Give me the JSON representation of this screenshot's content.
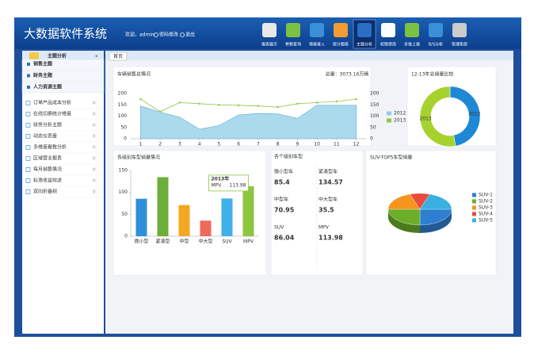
{
  "header": {
    "title": "大数据软件系统",
    "welcome": "欢迎，admin",
    "password": "密码修改",
    "logout": "退出"
  },
  "toolbar": [
    "报表展示",
    "参数查询",
    "填报录入",
    "统计图表",
    "主题分析",
    "权限使用",
    "多维上报",
    "B/S分析",
    "管理系统"
  ],
  "sidebar": {
    "title": "主题分析",
    "sections": [
      "销售主题",
      "财务主题",
      "人力资源主题"
    ],
    "items": [
      "订单产品成本分析",
      "在线切换统计维度",
      "财务分析主题",
      "动态仪表盘",
      "多维度看数分析",
      "区域营业报表",
      "每月销售情况",
      "标准收益综述",
      "双向折叠树"
    ]
  },
  "tab": "首页",
  "level_panel": {
    "title": "各个级别车型",
    "items": [
      {
        "name": "微小型车",
        "value": 85.4
      },
      {
        "name": "紧凑型车",
        "value": 134.57
      },
      {
        "name": "中型车",
        "value": 70.95
      },
      {
        "name": "中大型车",
        "value": 35.5
      },
      {
        "name": "SUV",
        "value": 86.04
      },
      {
        "name": "MPV",
        "value": 113.98
      }
    ]
  },
  "chart_data": [
    {
      "type": "line",
      "title": "车辆销售总情况",
      "annotation": "总量：3073.16万辆",
      "x": [
        1,
        2,
        3,
        4,
        5,
        6,
        7,
        8,
        9,
        10,
        11,
        12
      ],
      "xlim": [
        0.5,
        12.5
      ],
      "xticks": [
        1,
        2,
        3,
        4,
        5,
        6,
        7,
        8,
        9,
        10,
        11,
        12
      ],
      "ylim": [
        0,
        200
      ],
      "yticks": [
        0,
        50,
        100,
        150,
        200
      ],
      "y2lim": [
        0,
        200
      ],
      "y2ticks": [
        0,
        50,
        100,
        150,
        200
      ],
      "series": [
        {
          "name": "2012",
          "color": "#8ecde6",
          "values": [
            145,
            118,
            95,
            42,
            58,
            105,
            112,
            110,
            90,
            148,
            148,
            148
          ]
        },
        {
          "name": "2013",
          "color": "#8dc63f",
          "axis": "y2",
          "values": [
            175,
            120,
            160,
            155,
            150,
            148,
            145,
            140,
            155,
            160,
            165,
            175
          ]
        }
      ]
    },
    {
      "type": "donut",
      "title": "12-13年总销量比较",
      "categories": [
        "2012",
        "2013"
      ],
      "values": [
        47,
        53
      ],
      "colors": [
        "#1e88d4",
        "#a6d22e"
      ]
    },
    {
      "type": "bar",
      "title": "各级别车型销量情况",
      "annotation": "2013年",
      "categories": [
        "微小型",
        "紧凑型",
        "中型",
        "中大型",
        "SUV",
        "MPV"
      ],
      "values": [
        85.4,
        134.57,
        70.95,
        35.5,
        86.04,
        113.98
      ],
      "colors": [
        "#2f8fd8",
        "#6cae3a",
        "#f5a623",
        "#f06a5a",
        "#3fb0e8",
        "#8dc63f"
      ],
      "ylim": [
        0,
        150
      ],
      "yticks": [
        0,
        50,
        100,
        150
      ],
      "tooltip_index": 5
    },
    {
      "type": "pie3d",
      "title": "SUV-TOP5车型销量",
      "categories": [
        "SUV-1",
        "SUV-2",
        "SUV-3",
        "SUV-4",
        "SUV-5"
      ],
      "values": [
        25,
        25,
        20,
        10,
        20
      ],
      "colors": [
        "#2f7fd0",
        "#6cae2a",
        "#f7941d",
        "#e84c3d",
        "#3ab0e2"
      ],
      "legend": "right"
    }
  ]
}
